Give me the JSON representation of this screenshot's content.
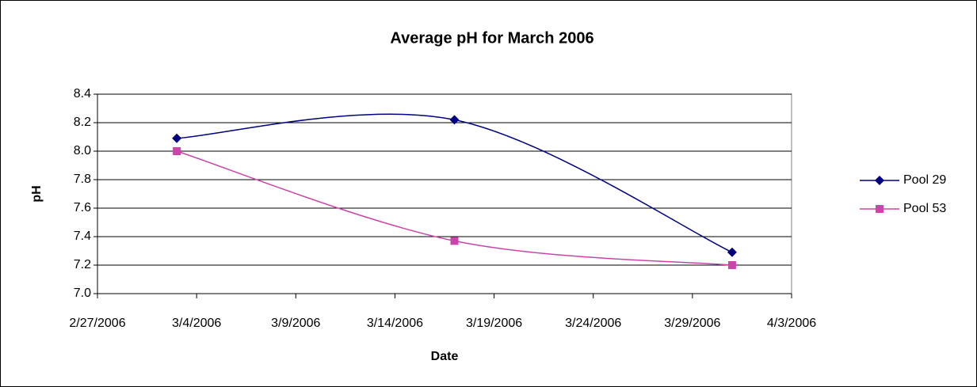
{
  "chart_data": {
    "type": "line",
    "title": "Average pH for March 2006",
    "x_label": "Date",
    "y_label": "pH",
    "x": [
      "3/3/2006",
      "3/17/2006",
      "3/31/2006"
    ],
    "series": [
      {
        "name": "Pool 29",
        "color": "#000080",
        "marker": "diamond",
        "values": [
          8.09,
          8.22,
          7.29
        ]
      },
      {
        "name": "Pool 53",
        "color": "#CC44AA",
        "marker": "square",
        "values": [
          8.0,
          7.37,
          7.2
        ]
      }
    ],
    "xlim": [
      "2/27/2006",
      "4/3/2006"
    ],
    "xticks": [
      "2/27/2006",
      "3/4/2006",
      "3/9/2006",
      "3/14/2006",
      "3/19/2006",
      "3/24/2006",
      "3/29/2006",
      "4/3/2006"
    ],
    "ylim": [
      7.0,
      8.4
    ],
    "yticks": [
      {
        "value": 7.0,
        "label": "7.0"
      },
      7.2,
      7.4,
      7.6,
      7.8,
      {
        "value": 8.0,
        "label": "8.0"
      },
      8.2,
      8.4
    ],
    "grid": true,
    "smooth": true,
    "legend": "right"
  }
}
